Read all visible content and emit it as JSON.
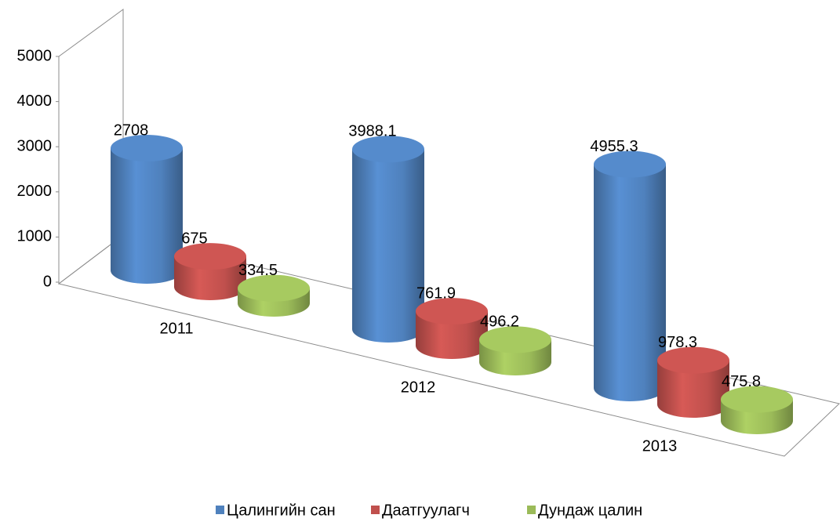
{
  "chart_data": {
    "type": "bar3d-cylinder",
    "categories": [
      "2011",
      "2012",
      "2013"
    ],
    "series": [
      {
        "name": "Цалингийн сан",
        "color": "#4f81bd",
        "values": [
          2708,
          3988.1,
          4955.3
        ]
      },
      {
        "name": "Даатгуулагч",
        "color": "#c0504d",
        "values": [
          675,
          761.9,
          978.3
        ]
      },
      {
        "name": "Дундаж цалин",
        "color": "#9bbb59",
        "values": [
          334.5,
          496.2,
          475.8
        ]
      }
    ],
    "ylim": [
      0,
      5000
    ],
    "yticks": [
      0,
      1000,
      2000,
      3000,
      4000,
      5000
    ],
    "legend": "bottom"
  }
}
